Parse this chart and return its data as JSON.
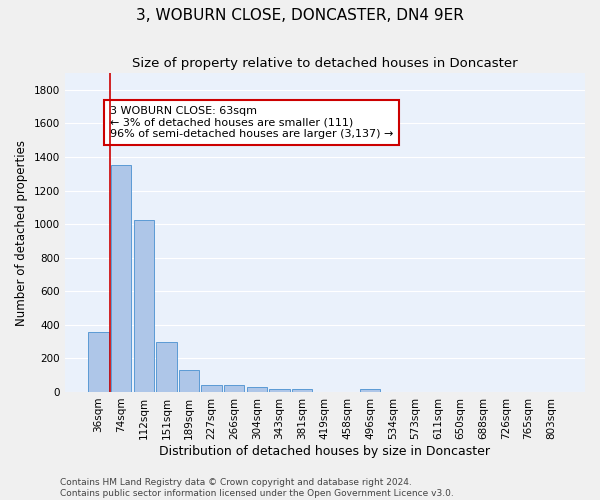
{
  "title": "3, WOBURN CLOSE, DONCASTER, DN4 9ER",
  "subtitle": "Size of property relative to detached houses in Doncaster",
  "xlabel": "Distribution of detached houses by size in Doncaster",
  "ylabel": "Number of detached properties",
  "bar_labels": [
    "36sqm",
    "74sqm",
    "112sqm",
    "151sqm",
    "189sqm",
    "227sqm",
    "266sqm",
    "304sqm",
    "343sqm",
    "381sqm",
    "419sqm",
    "458sqm",
    "496sqm",
    "534sqm",
    "573sqm",
    "611sqm",
    "650sqm",
    "688sqm",
    "726sqm",
    "765sqm",
    "803sqm"
  ],
  "bar_values": [
    355,
    1355,
    1025,
    295,
    130,
    40,
    40,
    30,
    20,
    15,
    0,
    0,
    20,
    0,
    0,
    0,
    0,
    0,
    0,
    0,
    0
  ],
  "bar_color": "#aec6e8",
  "bar_edge_color": "#5b9bd5",
  "background_color": "#eaf1fb",
  "grid_color": "#ffffff",
  "vline_x": 0.5,
  "vline_color": "#cc0000",
  "annotation_text": "3 WOBURN CLOSE: 63sqm\n← 3% of detached houses are smaller (111)\n96% of semi-detached houses are larger (3,137) →",
  "annotation_box_color": "#ffffff",
  "annotation_box_edge": "#cc0000",
  "ylim": [
    0,
    1900
  ],
  "yticks": [
    0,
    200,
    400,
    600,
    800,
    1000,
    1200,
    1400,
    1600,
    1800
  ],
  "footnote": "Contains HM Land Registry data © Crown copyright and database right 2024.\nContains public sector information licensed under the Open Government Licence v3.0.",
  "title_fontsize": 11,
  "subtitle_fontsize": 9.5,
  "xlabel_fontsize": 9,
  "ylabel_fontsize": 8.5,
  "annotation_fontsize": 8,
  "footnote_fontsize": 6.5,
  "tick_fontsize": 7.5
}
